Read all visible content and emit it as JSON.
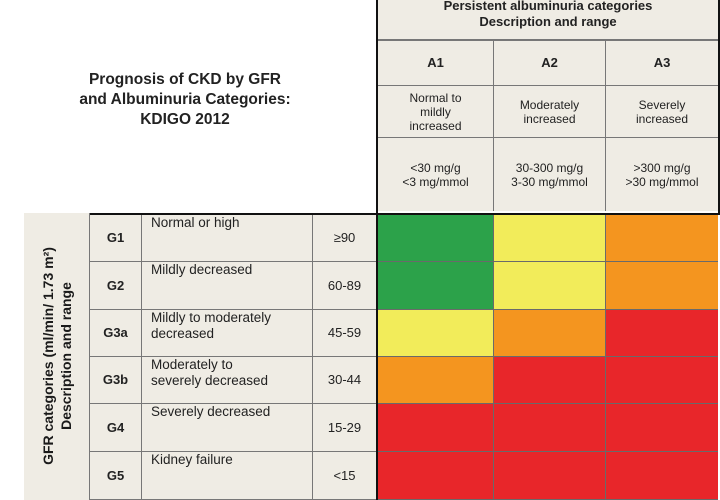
{
  "title": {
    "line1": "Prognosis of CKD by GFR",
    "line2": "and Albuminuria Categories:",
    "line3": "KDIGO 2012"
  },
  "albuminuria": {
    "header_line1": "Persistent albuminuria categories",
    "header_line2": "Description and range",
    "categories": [
      {
        "code": "A1",
        "desc_lines": [
          "Normal to",
          "mildly",
          "increased"
        ],
        "range_lines": [
          "<30 mg/g",
          "<3 mg/mmol"
        ]
      },
      {
        "code": "A2",
        "desc_lines": [
          "Moderately",
          "increased"
        ],
        "range_lines": [
          "30-300 mg/g",
          "3-30 mg/mmol"
        ]
      },
      {
        "code": "A3",
        "desc_lines": [
          "Severely",
          "increased"
        ],
        "range_lines": [
          ">300 mg/g",
          ">30 mg/mmol"
        ]
      }
    ]
  },
  "gfr": {
    "axis_label_line1": "GFR categories (ml/min/ 1.73 m²)",
    "axis_label_line2": "Description and range",
    "rows": [
      {
        "code": "G1",
        "desc_lines": [
          "Normal or high"
        ],
        "range": "≥90"
      },
      {
        "code": "G2",
        "desc_lines": [
          "Mildly decreased"
        ],
        "range": "60-89"
      },
      {
        "code": "G3a",
        "desc_lines": [
          "Mildly to moderately",
          "decreased"
        ],
        "range": "45-59"
      },
      {
        "code": "G3b",
        "desc_lines": [
          "Moderately to",
          "severely decreased"
        ],
        "range": "30-44"
      },
      {
        "code": "G4",
        "desc_lines": [
          "Severely decreased"
        ],
        "range": "15-29"
      },
      {
        "code": "G5",
        "desc_lines": [
          "Kidney failure"
        ],
        "range": "<15"
      }
    ]
  },
  "risk_colors": {
    "green": "#2ca24a",
    "yellow": "#f2ec5a",
    "orange": "#f4951f",
    "red": "#e8262a"
  },
  "risk_grid": [
    [
      "green",
      "yellow",
      "orange"
    ],
    [
      "green",
      "yellow",
      "orange"
    ],
    [
      "yellow",
      "orange",
      "red"
    ],
    [
      "orange",
      "red",
      "red"
    ],
    [
      "red",
      "red",
      "red"
    ],
    [
      "red",
      "red",
      "red"
    ]
  ]
}
